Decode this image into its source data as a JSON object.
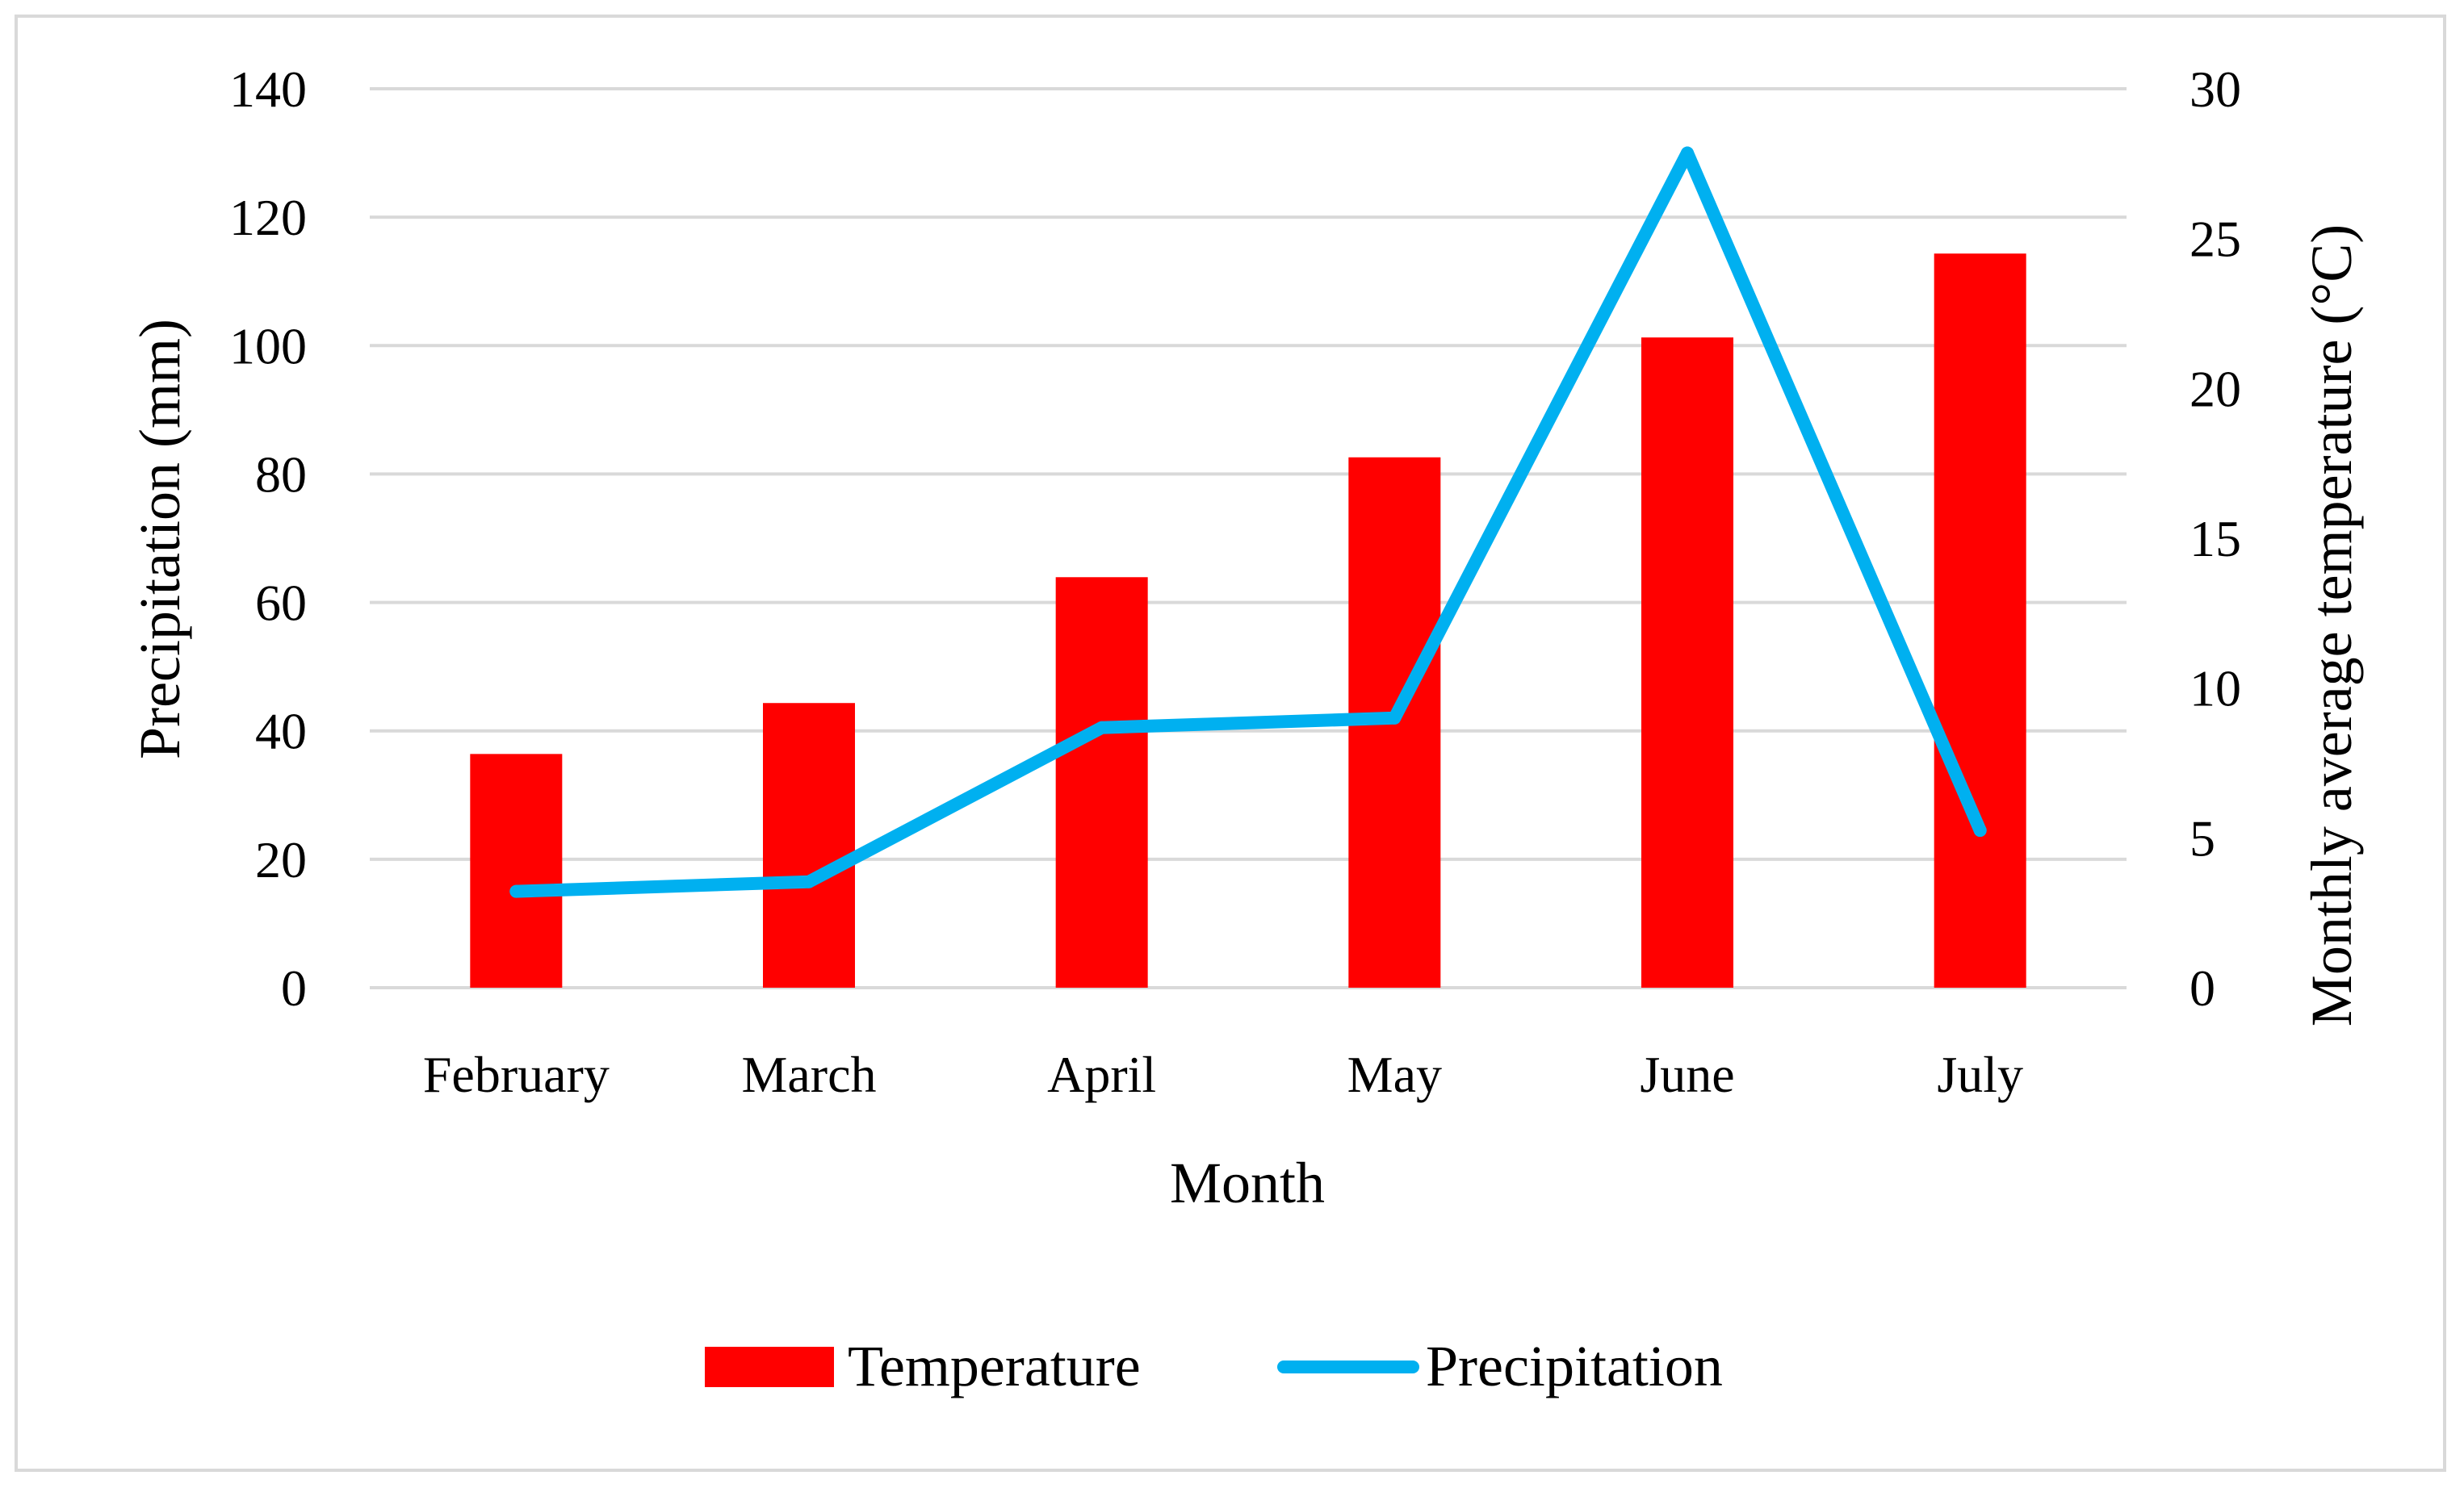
{
  "chart_data": {
    "type": "bar+line",
    "title": "",
    "categories": [
      "February",
      "March",
      "April",
      "May",
      "June",
      "July"
    ],
    "series": [
      {
        "name": "Temperature",
        "type": "bar",
        "axis": "right",
        "color": "#ff0000",
        "values": [
          7.8,
          9.5,
          13.7,
          17.7,
          21.7,
          24.5
        ]
      },
      {
        "name": "Precipitation",
        "type": "line",
        "axis": "left",
        "color": "#00b0f0",
        "values": [
          15,
          16.5,
          40.5,
          42,
          130,
          24.5
        ]
      }
    ],
    "xlabel": "Month",
    "ylabel_left": "Precipitation (mm)",
    "ylabel_right": "Monthly average temperature (°C)",
    "ylim_left": [
      0,
      140
    ],
    "ylim_right": [
      0,
      30
    ],
    "yticks_left": [
      "0",
      "20",
      "40",
      "60",
      "80",
      "100",
      "120",
      "140"
    ],
    "yticks_right": [
      "0",
      "5",
      "10",
      "15",
      "20",
      "25",
      "30"
    ],
    "grid": true,
    "gridline_color": "#d9d9d9",
    "legend_position": "bottom"
  }
}
